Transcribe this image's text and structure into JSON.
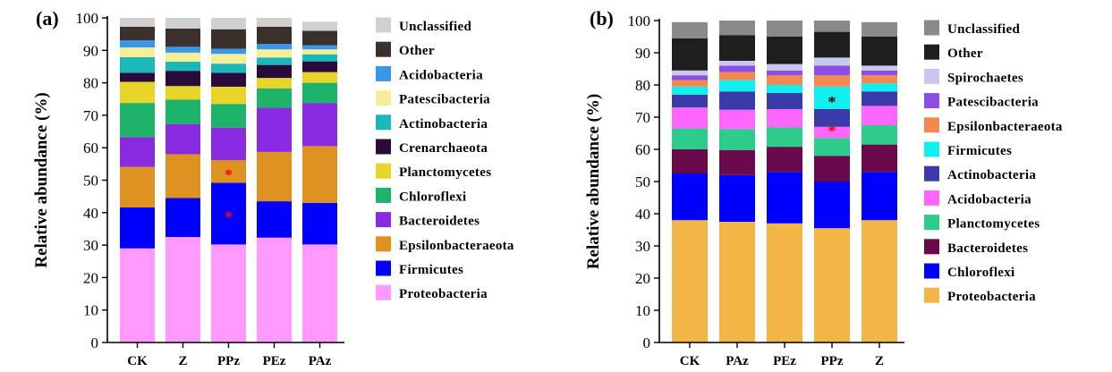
{
  "chart_data": [
    {
      "panel_label": "(a)",
      "type": "bar",
      "stacked": true,
      "ylabel": "Relative abundance (%)",
      "ylim": [
        0,
        100
      ],
      "yticks": [
        0,
        10,
        20,
        30,
        40,
        50,
        60,
        70,
        80,
        90,
        100
      ],
      "categories": [
        "CK",
        "Z",
        "PPz",
        "PEz",
        "PAz"
      ],
      "series": [
        {
          "name": "Proteobacteria",
          "color": "#ff99ff",
          "values": [
            29.0,
            32.5,
            30.2,
            32.3,
            30.2
          ]
        },
        {
          "name": "Firmicutes",
          "color": "#0000ff",
          "values": [
            12.6,
            12.0,
            19.0,
            11.2,
            12.8
          ]
        },
        {
          "name": "Epsilonbacteraeota",
          "color": "#dd9222",
          "values": [
            12.5,
            13.5,
            7.0,
            15.2,
            17.5
          ]
        },
        {
          "name": "Bacteroidetes",
          "color": "#8a2be2",
          "values": [
            9.2,
            9.3,
            10.0,
            13.6,
            13.3
          ]
        },
        {
          "name": "Chloroflexi",
          "color": "#1db36b",
          "values": [
            10.5,
            7.5,
            7.3,
            6.0,
            6.2
          ]
        },
        {
          "name": "Planctomycetes",
          "color": "#e8d52a",
          "values": [
            6.5,
            4.2,
            5.3,
            3.2,
            3.3
          ]
        },
        {
          "name": "Crenarchaeota",
          "color": "#2a0a3a",
          "values": [
            2.8,
            4.7,
            4.3,
            4.0,
            3.3
          ]
        },
        {
          "name": "Actinobacteria",
          "color": "#1ab8b8",
          "values": [
            4.8,
            2.8,
            2.8,
            2.3,
            2.2
          ]
        },
        {
          "name": "Patescibacteria",
          "color": "#f5ee99",
          "values": [
            3.0,
            2.8,
            3.0,
            2.5,
            1.5
          ]
        },
        {
          "name": "Acidobacteria",
          "color": "#3a96e6",
          "values": [
            2.2,
            1.8,
            1.6,
            1.7,
            1.3
          ]
        },
        {
          "name": "Other",
          "color": "#3a302c",
          "values": [
            4.2,
            5.6,
            6.0,
            5.3,
            4.4
          ]
        },
        {
          "name": "Unclassified",
          "color": "#d0d0d0",
          "values": [
            2.7,
            3.3,
            3.5,
            2.7,
            2.8
          ]
        }
      ],
      "annotations": [
        {
          "text": "*",
          "category": "PPz",
          "y": 39.5,
          "color": "#ff0000"
        },
        {
          "text": "*",
          "category": "PPz",
          "y": 52.5,
          "color": "#ff0000"
        }
      ]
    },
    {
      "panel_label": "(b)",
      "type": "bar",
      "stacked": true,
      "ylabel": "Relative abundance (%)",
      "ylim": [
        0,
        100
      ],
      "yticks": [
        0,
        10,
        20,
        30,
        40,
        50,
        60,
        70,
        80,
        90,
        100
      ],
      "categories": [
        "CK",
        "PAz",
        "PEz",
        "PPz",
        "Z"
      ],
      "series": [
        {
          "name": "Proteobacteria",
          "color": "#f3b545",
          "values": [
            38.0,
            37.5,
            37.0,
            35.5,
            38.0
          ]
        },
        {
          "name": "Chloroflexi",
          "color": "#0000ff",
          "values": [
            14.5,
            14.5,
            16.0,
            14.5,
            15.0
          ]
        },
        {
          "name": "Bacteroidetes",
          "color": "#6b0a4a",
          "values": [
            7.5,
            7.8,
            7.8,
            8.0,
            8.5
          ]
        },
        {
          "name": "Planctomycetes",
          "color": "#2ecc8a",
          "values": [
            6.5,
            6.5,
            6.0,
            5.5,
            6.0
          ]
        },
        {
          "name": "Acidobacteria",
          "color": "#ff66ff",
          "values": [
            6.5,
            6.0,
            5.7,
            3.5,
            6.0
          ]
        },
        {
          "name": "Actinobacteria",
          "color": "#3a3aa8",
          "values": [
            4.0,
            5.7,
            5.0,
            5.5,
            4.5
          ]
        },
        {
          "name": "Firmicutes",
          "color": "#11f0f0",
          "values": [
            2.5,
            3.5,
            2.5,
            7.0,
            2.5
          ]
        },
        {
          "name": "Epsilonbacteraeota",
          "color": "#f4894f",
          "values": [
            2.0,
            2.5,
            3.0,
            3.5,
            2.5
          ]
        },
        {
          "name": "Patescibacteria",
          "color": "#8a4fe0",
          "values": [
            1.5,
            2.0,
            1.5,
            3.0,
            1.5
          ]
        },
        {
          "name": "Spirochaetes",
          "color": "#c8c8ee",
          "values": [
            1.5,
            1.5,
            2.0,
            2.5,
            1.5
          ]
        },
        {
          "name": "Other",
          "color": "#1e1e1e",
          "values": [
            10.0,
            8.0,
            8.5,
            8.0,
            9.0
          ]
        },
        {
          "name": "Unclassified",
          "color": "#8a8a8a",
          "values": [
            5.0,
            4.5,
            5.0,
            3.5,
            4.5
          ]
        }
      ],
      "annotations": [
        {
          "text": "*",
          "category": "PPz",
          "y": 66.5,
          "color": "#ff0000"
        },
        {
          "text": "*",
          "category": "PPz",
          "y": 75.5,
          "color": "#000000"
        }
      ]
    }
  ]
}
